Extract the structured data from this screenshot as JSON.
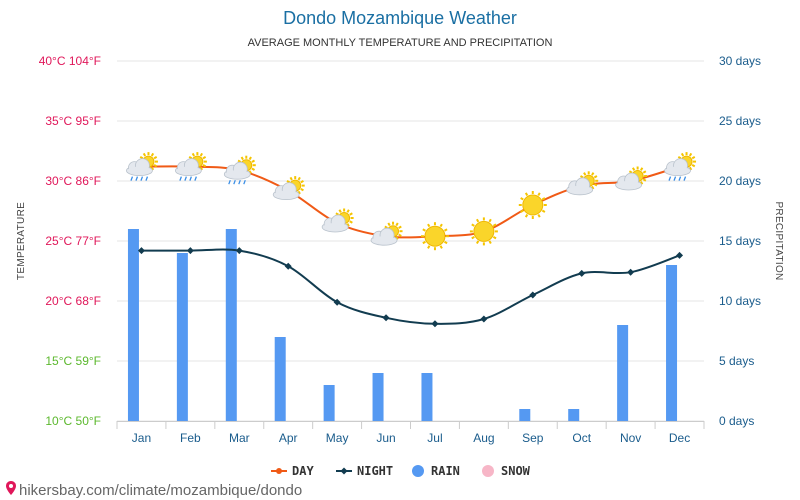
{
  "chart_data": {
    "type": "bar-line",
    "title": "Dondo Mozambique Weather",
    "subtitle": "AVERAGE MONTHLY TEMPERATURE AND PRECIPITATION",
    "ylabel_left": "TEMPERATURE",
    "ylabel_right": "PRECIPITATION",
    "categories": [
      "Jan",
      "Feb",
      "Mar",
      "Apr",
      "May",
      "Jun",
      "Jul",
      "Aug",
      "Sep",
      "Oct",
      "Nov",
      "Dec"
    ],
    "left_axis": {
      "ylim": [
        10,
        40
      ],
      "ticks": [
        {
          "value": 40,
          "label": "40°C 104°F",
          "color": "#e0175a"
        },
        {
          "value": 35,
          "label": "35°C 95°F",
          "color": "#e0175a"
        },
        {
          "value": 30,
          "label": "30°C 86°F",
          "color": "#e0175a"
        },
        {
          "value": 25,
          "label": "25°C 77°F",
          "color": "#e0175a"
        },
        {
          "value": 20,
          "label": "20°C 68°F",
          "color": "#e0175a"
        },
        {
          "value": 15,
          "label": "15°C 59°F",
          "color": "#5cb82e"
        },
        {
          "value": 10,
          "label": "10°C 50°F",
          "color": "#5cb82e"
        }
      ]
    },
    "right_axis": {
      "ylim": [
        0,
        30
      ],
      "ticks": [
        {
          "value": 30,
          "label": "30 days"
        },
        {
          "value": 25,
          "label": "25 days"
        },
        {
          "value": 20,
          "label": "20 days"
        },
        {
          "value": 15,
          "label": "15 days"
        },
        {
          "value": 10,
          "label": "10 days"
        },
        {
          "value": 5,
          "label": "5 days"
        },
        {
          "value": 0,
          "label": "0 days"
        }
      ]
    },
    "series": [
      {
        "name": "DAY",
        "type": "line",
        "color": "#f05a16",
        "values": [
          31.2,
          31.2,
          30.9,
          29.2,
          26.5,
          25.4,
          25.4,
          25.8,
          28.0,
          29.6,
          30.0,
          31.2
        ]
      },
      {
        "name": "NIGHT",
        "type": "line",
        "color": "#123c50",
        "values": [
          24.2,
          24.2,
          24.2,
          22.9,
          19.9,
          18.6,
          18.1,
          18.5,
          20.5,
          22.3,
          22.4,
          23.8
        ]
      },
      {
        "name": "RAIN",
        "type": "bar",
        "color": "#5599f2",
        "values": [
          16,
          14,
          16,
          7,
          3,
          4,
          4,
          0,
          1,
          1,
          8,
          13
        ]
      },
      {
        "name": "SNOW",
        "type": "bar",
        "color": "#f7b6c7",
        "values": [
          0,
          0,
          0,
          0,
          0,
          0,
          0,
          0,
          0,
          0,
          0,
          0
        ]
      }
    ],
    "weather_icons": [
      "sun-cloud-rain",
      "sun-cloud-rain",
      "sun-cloud-rain",
      "sun-cloud",
      "sun-cloud",
      "sun-cloud",
      "sun",
      "sun",
      "sun",
      "sun-cloud",
      "sun-cloud",
      "sun-cloud-rain"
    ],
    "legend_position": "bottom-center",
    "grid": true
  },
  "footer": {
    "credit": "hikersbay.com/climate/mozambique/dondo",
    "pin_color": "#e0175a"
  }
}
